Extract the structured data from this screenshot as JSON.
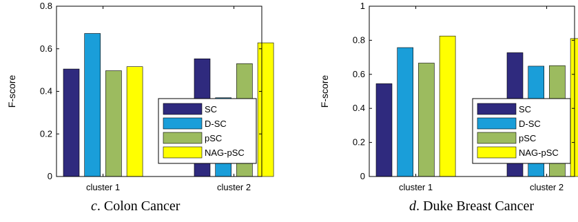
{
  "chart_data": [
    {
      "type": "bar",
      "panel_letter": "c",
      "caption": ". Colon Cancer",
      "ylabel": "F-score",
      "xlabel": "",
      "ylim": [
        0,
        0.8
      ],
      "yticks": [
        "0",
        "0.2",
        "0.4",
        "0.6",
        "0.8"
      ],
      "ytick_values": [
        0,
        0.2,
        0.4,
        0.6,
        0.8
      ],
      "categories": [
        "cluster 1",
        "cluster 2"
      ],
      "legend_position": "lower-right",
      "series": [
        {
          "name": "SC",
          "color": "#2f2a7e",
          "values": [
            0.505,
            0.553
          ]
        },
        {
          "name": "D-SC",
          "color": "#1a9ed9",
          "values": [
            0.672,
            0.37
          ]
        },
        {
          "name": "pSC",
          "color": "#9cbb5f",
          "values": [
            0.497,
            0.53
          ]
        },
        {
          "name": "NAG-pSC",
          "color": "#ffff00",
          "values": [
            0.516,
            0.628
          ]
        }
      ]
    },
    {
      "type": "bar",
      "panel_letter": "d",
      "caption": ". Duke Breast Cancer",
      "ylabel": "F-score",
      "xlabel": "",
      "ylim": [
        0,
        1
      ],
      "yticks": [
        "0",
        "0.2",
        "0.4",
        "0.6",
        "0.8",
        "1"
      ],
      "ytick_values": [
        0,
        0.2,
        0.4,
        0.6,
        0.8,
        1
      ],
      "categories": [
        "cluster 1",
        "cluster 2"
      ],
      "legend_position": "lower-right",
      "series": [
        {
          "name": "SC",
          "color": "#2f2a7e",
          "values": [
            0.545,
            0.727
          ]
        },
        {
          "name": "D-SC",
          "color": "#1a9ed9",
          "values": [
            0.757,
            0.648
          ]
        },
        {
          "name": "pSC",
          "color": "#9cbb5f",
          "values": [
            0.666,
            0.651
          ]
        },
        {
          "name": "NAG-pSC",
          "color": "#ffff00",
          "values": [
            0.825,
            0.81
          ]
        }
      ]
    }
  ]
}
